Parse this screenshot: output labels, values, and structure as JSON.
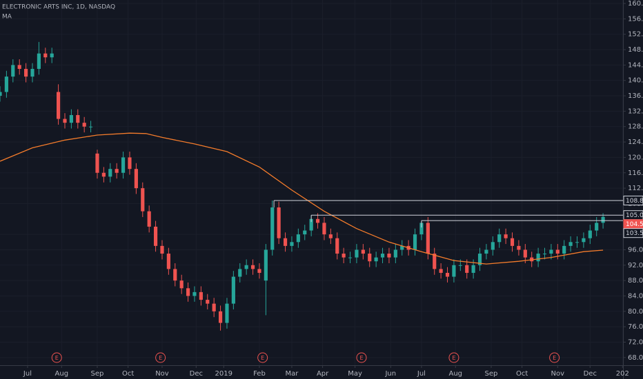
{
  "chart_data": {
    "type": "candlestick",
    "title": "ELECTRONIC ARTS INC, 1D, NASDAQ",
    "up_color": "#26a69a",
    "down_color": "#ef5350",
    "x": [
      0,
      4,
      8,
      12,
      16,
      20,
      24,
      28,
      32,
      36,
      40,
      44,
      48,
      52,
      56,
      60,
      64,
      68,
      72,
      76,
      80,
      84,
      88,
      92,
      96,
      100,
      104,
      108,
      112,
      116,
      120,
      124,
      128,
      132,
      136,
      140,
      144,
      148,
      152,
      156,
      160,
      164,
      168,
      172,
      176,
      180,
      184,
      188,
      192,
      196,
      200,
      204,
      208,
      212,
      216,
      220,
      224,
      228,
      232,
      236,
      240,
      244,
      248,
      252,
      256,
      260,
      264,
      268,
      272,
      276,
      280,
      284,
      288,
      292,
      296,
      300,
      304,
      308,
      312,
      316,
      320,
      324,
      328,
      332,
      336,
      340,
      344,
      348,
      352,
      356,
      360,
      364,
      368,
      372
    ],
    "open": [
      136,
      137,
      141,
      144,
      143,
      141,
      143,
      147,
      146,
      137,
      130,
      129,
      131,
      129,
      128,
      121,
      116,
      115,
      117,
      116,
      120,
      117,
      112,
      106,
      102,
      97,
      95,
      91,
      88,
      86,
      84,
      85,
      83,
      82,
      80,
      77,
      82,
      89,
      91,
      92,
      91,
      88,
      96,
      107,
      99,
      97,
      98,
      100,
      101,
      104,
      103,
      100,
      99,
      95,
      94,
      94,
      96,
      95,
      93,
      94,
      95,
      94,
      96,
      97,
      96,
      100,
      103,
      95,
      91,
      90,
      89,
      92,
      92,
      90,
      92,
      95,
      96,
      98,
      100,
      99,
      97,
      96,
      94,
      93,
      95,
      95,
      96,
      95,
      97,
      98,
      98,
      99,
      101,
      103
    ],
    "high": [
      138.5,
      142.5,
      145.5,
      145.5,
      144.5,
      144.5,
      150,
      148.5,
      148.5,
      139,
      131.5,
      132.5,
      132.5,
      130.5,
      129.5,
      122,
      117.5,
      118.5,
      118.5,
      121.5,
      121.5,
      118.5,
      113.5,
      107.5,
      103.5,
      98.5,
      96.5,
      92.5,
      89.5,
      87.5,
      86.5,
      86.5,
      84.5,
      83.5,
      81.5,
      83.5,
      90.5,
      92.5,
      93.5,
      93.5,
      92.5,
      97.5,
      108.8,
      108.5,
      100.5,
      99.5,
      101.5,
      102.5,
      105,
      105.5,
      104.5,
      101.5,
      100.5,
      96.5,
      95.5,
      97.5,
      97.5,
      96.5,
      95.5,
      96.5,
      96.5,
      97.5,
      98.5,
      98.5,
      101.5,
      103.59,
      104.5,
      96.5,
      92.5,
      91.5,
      93.5,
      93.5,
      93.5,
      93.5,
      96.5,
      97.5,
      99.5,
      101.5,
      101.5,
      100.5,
      98.5,
      97.5,
      95.5,
      96.5,
      96.5,
      97.5,
      97.5,
      98.5,
      99.5,
      99.5,
      100.5,
      102.5,
      104.5,
      105.5
    ],
    "low": [
      134.5,
      135.5,
      139.5,
      141.5,
      139.5,
      139.5,
      141.5,
      144.5,
      144.5,
      128.5,
      127.5,
      127.5,
      127.5,
      126.5,
      126.5,
      114.5,
      113.5,
      113.5,
      114.5,
      114.5,
      115.5,
      110.5,
      104.5,
      100.5,
      95.5,
      93.5,
      89.5,
      86.5,
      84.5,
      82.5,
      82.5,
      81.5,
      80.5,
      78.5,
      75,
      75.5,
      80.5,
      87.5,
      89.5,
      89.5,
      88.5,
      79,
      94.5,
      97.5,
      95.5,
      95.5,
      96.5,
      98.5,
      99.5,
      101.5,
      98.5,
      97.5,
      93.5,
      92.5,
      92.5,
      92.5,
      93.5,
      91.5,
      91.5,
      92.5,
      92.5,
      92.5,
      94.5,
      94.5,
      94.5,
      98.5,
      93.5,
      89.5,
      88.5,
      87.5,
      87.5,
      90.5,
      88.5,
      88.5,
      90.5,
      93.5,
      94.5,
      96.5,
      97.5,
      95.5,
      94.5,
      92.5,
      91.5,
      91.5,
      93.5,
      93.5,
      93.5,
      93.5,
      95.5,
      96.5,
      96.5,
      97.5,
      99.5,
      101.5
    ],
    "close": [
      137,
      141,
      144,
      143,
      141,
      143,
      147,
      146,
      147,
      130,
      129,
      131,
      129,
      128,
      128,
      116,
      115,
      117,
      116,
      120,
      117,
      112,
      106,
      102,
      97,
      95,
      91,
      88,
      86,
      84,
      85,
      83,
      82,
      80,
      77,
      82,
      89,
      91,
      92,
      91,
      90,
      96,
      107,
      99,
      97,
      98,
      100,
      101,
      104,
      103,
      100,
      99,
      95,
      94,
      94,
      96,
      95,
      93,
      94,
      95,
      94,
      96,
      97,
      96,
      100,
      103,
      95,
      91,
      90,
      89,
      92,
      92,
      90,
      92,
      95,
      96,
      98,
      100,
      99,
      97,
      96,
      94,
      93,
      95,
      95,
      96,
      95,
      97,
      98,
      98,
      99,
      101,
      103,
      104.55
    ],
    "ma": {
      "name": "MA",
      "color": "#f57c2b",
      "x": [
        0,
        20,
        40,
        60,
        80,
        90,
        100,
        120,
        140,
        160,
        180,
        200,
        220,
        240,
        260,
        280,
        300,
        320,
        340,
        360,
        372
      ],
      "values": [
        119,
        122.5,
        124.5,
        125.8,
        126.3,
        126.2,
        125.2,
        123.5,
        121.5,
        117.5,
        111.5,
        106,
        101.5,
        98,
        95.5,
        93.2,
        92.3,
        93,
        94,
        95.5,
        95.9
      ]
    },
    "hlines": [
      {
        "value": 108.8,
        "label": "108.80",
        "start": 169
      },
      {
        "value": 105,
        "label": "105.00",
        "start": 192
      },
      {
        "value": 103.59,
        "label": "103.59",
        "start": 260
      }
    ],
    "events": [
      {
        "x": 35,
        "label": "E"
      },
      {
        "x": 99,
        "label": "E"
      },
      {
        "x": 162,
        "label": "E"
      },
      {
        "x": 223,
        "label": "E"
      },
      {
        "x": 280,
        "label": "E"
      },
      {
        "x": 342,
        "label": "E"
      }
    ],
    "xlim": [
      0,
      384.3
    ],
    "ylim": [
      66,
      160.9
    ],
    "grid": true,
    "xticks": [
      {
        "value": 17,
        "label": "Jul"
      },
      {
        "value": 38,
        "label": "Aug"
      },
      {
        "value": 60,
        "label": "Sep"
      },
      {
        "value": 79,
        "label": "Oct"
      },
      {
        "value": 100,
        "label": "Nov"
      },
      {
        "value": 121,
        "label": "Dec"
      },
      {
        "value": 138,
        "label": "2019"
      },
      {
        "value": 160,
        "label": "Feb"
      },
      {
        "value": 180,
        "label": "Mar"
      },
      {
        "value": 199,
        "label": "Apr"
      },
      {
        "value": 219,
        "label": "May"
      },
      {
        "value": 241,
        "label": "Jun"
      },
      {
        "value": 260,
        "label": "Jul"
      },
      {
        "value": 281,
        "label": "Aug"
      },
      {
        "value": 303,
        "label": "Sep"
      },
      {
        "value": 322,
        "label": "Oct"
      },
      {
        "value": 344,
        "label": "Nov"
      },
      {
        "value": 364,
        "label": "Dec"
      },
      {
        "value": 384,
        "label": "202"
      }
    ],
    "yticks": [
      {
        "value": 160,
        "label": "160.00"
      },
      {
        "value": 156,
        "label": "156.00"
      },
      {
        "value": 152,
        "label": "152.00"
      },
      {
        "value": 148,
        "label": "148.00"
      },
      {
        "value": 144,
        "label": "144.00"
      },
      {
        "value": 140,
        "label": "140.00"
      },
      {
        "value": 136,
        "label": "136.00"
      },
      {
        "value": 132,
        "label": "132.00"
      },
      {
        "value": 128,
        "label": "128.00"
      },
      {
        "value": 124,
        "label": "124.00"
      },
      {
        "value": 120,
        "label": "120.00"
      },
      {
        "value": 116,
        "label": "116.00"
      },
      {
        "value": 112,
        "label": "112.00"
      },
      {
        "value": 108,
        "label": "108.00"
      },
      {
        "value": 100,
        "label": "100.00"
      },
      {
        "value": 96,
        "label": "96.00"
      },
      {
        "value": 92,
        "label": "92.00"
      },
      {
        "value": 88,
        "label": "88.00"
      },
      {
        "value": 84,
        "label": "84.00"
      },
      {
        "value": 80,
        "label": "80.00"
      },
      {
        "value": 76,
        "label": "76.00"
      },
      {
        "value": 72,
        "label": "72.00"
      },
      {
        "value": 68,
        "label": "68.00"
      }
    ]
  }
}
